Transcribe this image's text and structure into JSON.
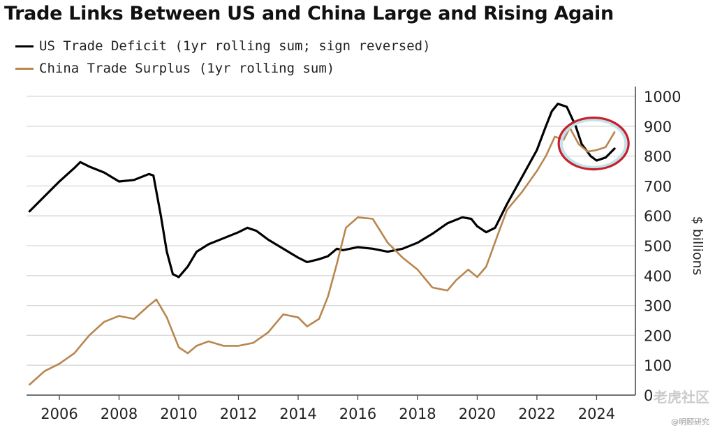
{
  "chart_data": {
    "type": "line",
    "title": "Trade Links Between US and China Large and Rising Again",
    "ylabel": "$ billions",
    "xlabel": "",
    "xlim": [
      2004.9,
      2025.3
    ],
    "ylim": [
      0,
      1000
    ],
    "y_ticks": [
      0,
      100,
      200,
      300,
      400,
      500,
      600,
      700,
      800,
      900,
      1000
    ],
    "x_ticks": [
      2006,
      2008,
      2010,
      2012,
      2014,
      2016,
      2018,
      2020,
      2022,
      2024
    ],
    "grid": "horizontal",
    "y_axis_side": "right",
    "legend_position": "top-left",
    "annotation": "red ellipse highlighting 2023-2024",
    "series": [
      {
        "name": "US Trade Deficit (1yr rolling sum; sign reversed)",
        "color": "#000000",
        "points": [
          [
            2005.0,
            615
          ],
          [
            2005.5,
            665
          ],
          [
            2006.0,
            715
          ],
          [
            2006.5,
            760
          ],
          [
            2006.7,
            780
          ],
          [
            2007.0,
            765
          ],
          [
            2007.5,
            745
          ],
          [
            2008.0,
            715
          ],
          [
            2008.5,
            720
          ],
          [
            2009.0,
            740
          ],
          [
            2009.15,
            735
          ],
          [
            2009.4,
            600
          ],
          [
            2009.6,
            480
          ],
          [
            2009.8,
            405
          ],
          [
            2010.0,
            395
          ],
          [
            2010.3,
            430
          ],
          [
            2010.6,
            480
          ],
          [
            2011.0,
            505
          ],
          [
            2011.5,
            525
          ],
          [
            2012.0,
            545
          ],
          [
            2012.3,
            560
          ],
          [
            2012.6,
            550
          ],
          [
            2013.0,
            520
          ],
          [
            2013.5,
            490
          ],
          [
            2014.0,
            460
          ],
          [
            2014.3,
            445
          ],
          [
            2014.7,
            455
          ],
          [
            2015.0,
            465
          ],
          [
            2015.3,
            490
          ],
          [
            2015.5,
            485
          ],
          [
            2016.0,
            495
          ],
          [
            2016.5,
            490
          ],
          [
            2017.0,
            480
          ],
          [
            2017.5,
            490
          ],
          [
            2018.0,
            510
          ],
          [
            2018.5,
            540
          ],
          [
            2019.0,
            575
          ],
          [
            2019.5,
            595
          ],
          [
            2019.8,
            590
          ],
          [
            2020.0,
            565
          ],
          [
            2020.3,
            545
          ],
          [
            2020.6,
            560
          ],
          [
            2021.0,
            640
          ],
          [
            2021.5,
            730
          ],
          [
            2022.0,
            820
          ],
          [
            2022.3,
            900
          ],
          [
            2022.5,
            950
          ],
          [
            2022.7,
            975
          ],
          [
            2023.0,
            965
          ],
          [
            2023.3,
            900
          ],
          [
            2023.5,
            840
          ],
          [
            2023.8,
            800
          ],
          [
            2024.0,
            785
          ],
          [
            2024.3,
            795
          ],
          [
            2024.6,
            825
          ]
        ]
      },
      {
        "name": "China Trade Surplus (1yr rolling sum)",
        "color": "#b8864e",
        "points": [
          [
            2005.0,
            35
          ],
          [
            2005.5,
            80
          ],
          [
            2006.0,
            105
          ],
          [
            2006.5,
            140
          ],
          [
            2007.0,
            200
          ],
          [
            2007.5,
            245
          ],
          [
            2008.0,
            265
          ],
          [
            2008.5,
            255
          ],
          [
            2009.0,
            300
          ],
          [
            2009.25,
            320
          ],
          [
            2009.6,
            260
          ],
          [
            2010.0,
            160
          ],
          [
            2010.3,
            140
          ],
          [
            2010.6,
            165
          ],
          [
            2011.0,
            180
          ],
          [
            2011.5,
            165
          ],
          [
            2012.0,
            165
          ],
          [
            2012.5,
            175
          ],
          [
            2013.0,
            210
          ],
          [
            2013.5,
            270
          ],
          [
            2014.0,
            260
          ],
          [
            2014.3,
            230
          ],
          [
            2014.7,
            255
          ],
          [
            2015.0,
            330
          ],
          [
            2015.3,
            440
          ],
          [
            2015.6,
            560
          ],
          [
            2016.0,
            595
          ],
          [
            2016.5,
            590
          ],
          [
            2017.0,
            510
          ],
          [
            2017.5,
            460
          ],
          [
            2018.0,
            420
          ],
          [
            2018.5,
            360
          ],
          [
            2019.0,
            350
          ],
          [
            2019.3,
            385
          ],
          [
            2019.7,
            420
          ],
          [
            2020.0,
            395
          ],
          [
            2020.3,
            430
          ],
          [
            2020.7,
            540
          ],
          [
            2021.0,
            620
          ],
          [
            2021.5,
            680
          ],
          [
            2022.0,
            750
          ],
          [
            2022.3,
            800
          ],
          [
            2022.6,
            865
          ],
          [
            2022.9,
            855
          ],
          [
            2023.1,
            895
          ],
          [
            2023.4,
            840
          ],
          [
            2023.7,
            815
          ],
          [
            2024.0,
            820
          ],
          [
            2024.3,
            830
          ],
          [
            2024.6,
            880
          ]
        ]
      }
    ]
  },
  "watermark": {
    "main": "老虎社区",
    "sub": "@明颐研究"
  }
}
